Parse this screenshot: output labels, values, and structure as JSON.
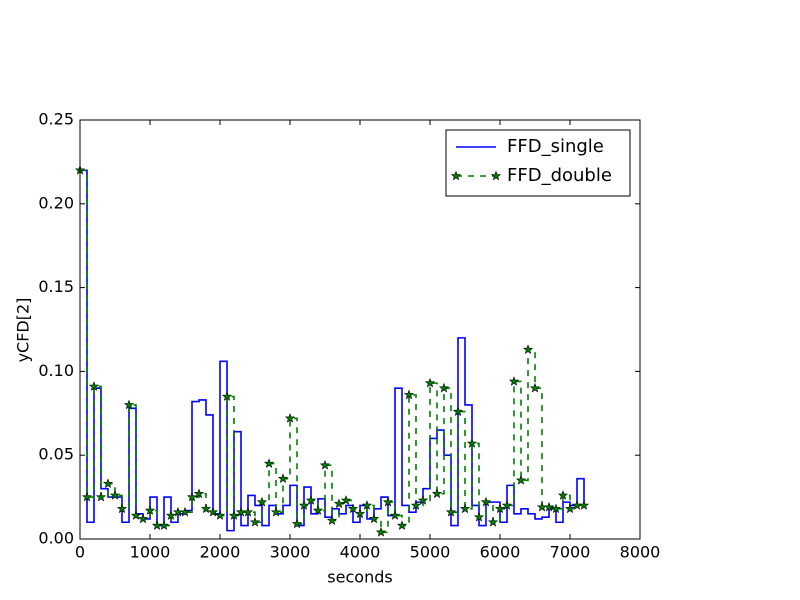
{
  "chart_data": {
    "type": "step",
    "xlabel": "seconds",
    "ylabel": "yCFD[2]",
    "x": [
      0,
      100,
      200,
      300,
      400,
      500,
      600,
      700,
      800,
      900,
      1000,
      1100,
      1200,
      1300,
      1400,
      1500,
      1600,
      1700,
      1800,
      1900,
      2000,
      2100,
      2200,
      2300,
      2400,
      2500,
      2600,
      2700,
      2800,
      2900,
      3000,
      3100,
      3200,
      3300,
      3400,
      3500,
      3600,
      3700,
      3800,
      3900,
      4000,
      4100,
      4200,
      4300,
      4400,
      4500,
      4600,
      4700,
      4800,
      4900,
      5000,
      5100,
      5200,
      5300,
      5400,
      5500,
      5600,
      5700,
      5800,
      5900,
      6000,
      6100,
      6200,
      6300,
      6400,
      6500,
      6600,
      6700,
      6800,
      6900,
      7000,
      7100,
      7200
    ],
    "series": [
      {
        "name": "FFD_single",
        "color": "#0000ff",
        "dash": false,
        "marker": false,
        "values": [
          0.22,
          0.01,
          0.09,
          0.03,
          0.025,
          0.025,
          0.01,
          0.078,
          0.015,
          0.012,
          0.025,
          0.008,
          0.025,
          0.01,
          0.015,
          0.017,
          0.082,
          0.083,
          0.074,
          0.015,
          0.106,
          0.005,
          0.064,
          0.008,
          0.026,
          0.02,
          0.008,
          0.02,
          0.015,
          0.02,
          0.032,
          0.008,
          0.031,
          0.015,
          0.024,
          0.013,
          0.018,
          0.015,
          0.02,
          0.01,
          0.02,
          0.012,
          0.018,
          0.025,
          0.014,
          0.09,
          0.02,
          0.016,
          0.022,
          0.03,
          0.06,
          0.065,
          0.05,
          0.008,
          0.12,
          0.08,
          0.02,
          0.008,
          0.022,
          0.022,
          0.01,
          0.032,
          0.015,
          0.018,
          0.015,
          0.012,
          0.013,
          0.018,
          0.01,
          0.022,
          0.02,
          0.036,
          0.02
        ]
      },
      {
        "name": "FFD_double",
        "color": "#007f00",
        "dash": true,
        "marker": true,
        "values": [
          0.22,
          0.025,
          0.091,
          0.025,
          0.033,
          0.026,
          0.018,
          0.08,
          0.014,
          0.012,
          0.017,
          0.008,
          0.008,
          0.014,
          0.016,
          0.016,
          0.025,
          0.027,
          0.018,
          0.016,
          0.014,
          0.085,
          0.014,
          0.016,
          0.016,
          0.01,
          0.022,
          0.045,
          0.016,
          0.036,
          0.072,
          0.009,
          0.02,
          0.023,
          0.017,
          0.044,
          0.011,
          0.021,
          0.023,
          0.018,
          0.015,
          0.02,
          0.012,
          0.004,
          0.022,
          0.014,
          0.008,
          0.086,
          0.02,
          0.023,
          0.093,
          0.027,
          0.09,
          0.016,
          0.076,
          0.018,
          0.057,
          0.013,
          0.022,
          0.01,
          0.018,
          0.02,
          0.094,
          0.035,
          0.113,
          0.09,
          0.019,
          0.019,
          0.018,
          0.026,
          0.018,
          0.02,
          0.02
        ]
      }
    ],
    "xlim": [
      0,
      8000
    ],
    "xticks": [
      0,
      1000,
      2000,
      3000,
      4000,
      5000,
      6000,
      7000,
      8000
    ],
    "ylim": [
      0,
      0.25
    ],
    "yticks": [
      {
        "value": 0,
        "label": "0.00"
      },
      {
        "value": 0.05,
        "label": "0.05"
      },
      {
        "value": 0.1,
        "label": "0.10"
      },
      {
        "value": 0.15,
        "label": "0.15"
      },
      {
        "value": 0.2,
        "label": "0.20"
      },
      {
        "value": 0.25,
        "label": "0.25"
      }
    ],
    "legend": "upper right",
    "grid": false
  }
}
